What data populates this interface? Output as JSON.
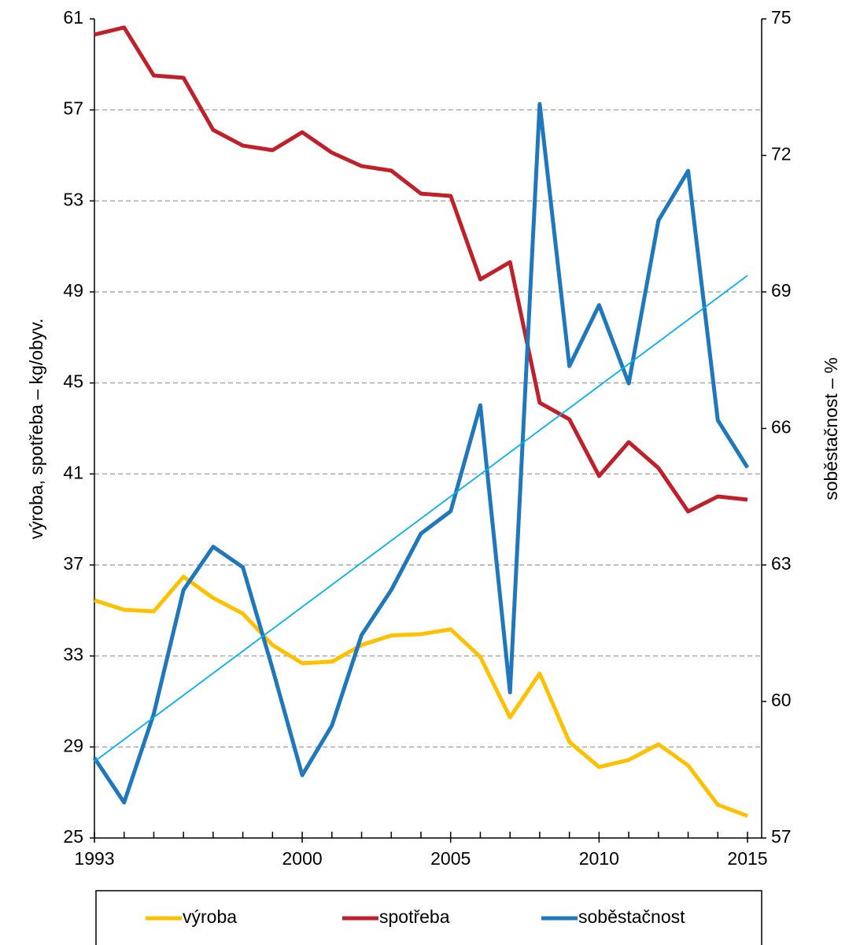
{
  "chart_data": {
    "type": "line",
    "x": [
      1993,
      1994,
      1995,
      1996,
      1997,
      1998,
      1999,
      2000,
      2001,
      2002,
      2003,
      2004,
      2005,
      2006,
      2007,
      2008,
      2009,
      2010,
      2011,
      2012,
      2013,
      2014,
      2015
    ],
    "xlim": [
      1993,
      2015
    ],
    "xticks": [
      1993,
      2000,
      2005,
      2010,
      2015
    ],
    "ylabel": "výroba, spotřeba – kg/obyv.",
    "y2label": "soběstačnost – %",
    "ylim": [
      25,
      61
    ],
    "yticks": [
      25,
      29,
      33,
      37,
      41,
      45,
      49,
      53,
      57,
      61
    ],
    "y2lim": [
      57,
      75
    ],
    "y2ticks": [
      57,
      60,
      63,
      66,
      69,
      72,
      75
    ],
    "grid": true,
    "series": [
      {
        "name": "výroba",
        "color": "#FFC000",
        "values": [
          35.45,
          35.03,
          34.96,
          36.48,
          35.55,
          34.86,
          33.48,
          32.68,
          32.75,
          33.48,
          33.9,
          33.96,
          34.17,
          32.96,
          30.3,
          32.23,
          29.22,
          28.12,
          28.43,
          29.12,
          28.19,
          26.46,
          25.97
        ]
      },
      {
        "name": "spotřeba",
        "color": "#C0202A",
        "values": [
          60.31,
          60.62,
          58.51,
          58.41,
          56.12,
          55.43,
          55.23,
          56.02,
          55.12,
          54.53,
          54.33,
          53.32,
          53.22,
          49.55,
          50.31,
          44.13,
          43.4,
          40.91,
          42.4,
          41.26,
          39.35,
          40.01,
          39.87
        ]
      },
      {
        "name": "soběstačnost",
        "color": "#1F77BC",
        "axis": "y2",
        "values": [
          58.76,
          57.78,
          59.73,
          62.45,
          63.4,
          62.95,
          60.72,
          58.38,
          59.47,
          61.46,
          62.45,
          63.69,
          64.18,
          66.51,
          60.2,
          73.13,
          67.37,
          68.71,
          66.99,
          70.57,
          71.66,
          66.18,
          65.14
        ]
      }
    ],
    "trendline": {
      "axis": "y2",
      "color": "#00B0F0",
      "x": [
        1993,
        2015
      ],
      "values": [
        58.68,
        69.36
      ]
    }
  }
}
